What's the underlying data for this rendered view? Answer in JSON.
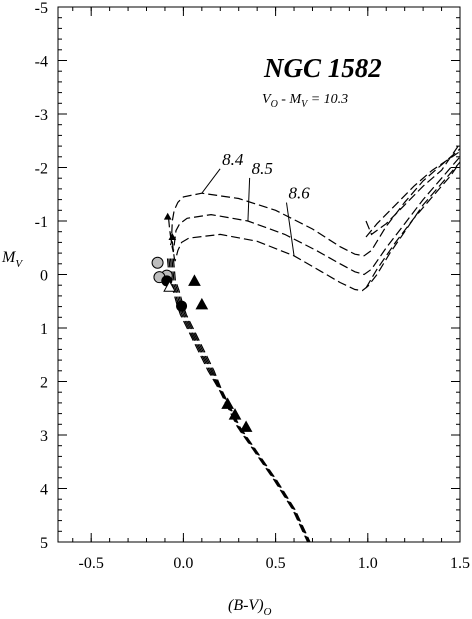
{
  "chart_data": {
    "type": "scatter",
    "title": "NGC 1582",
    "subtitle": {
      "main": "V",
      "sub1": "O",
      "mid": " - M",
      "sub2": "V",
      "tail": " = 10.3"
    },
    "xlabel": {
      "main": "(B-V)",
      "sub": "O"
    },
    "ylabel": {
      "main": "M",
      "sub": "V"
    },
    "xlim": [
      -0.68,
      1.5
    ],
    "ylim": [
      5,
      -5
    ],
    "y_inverted": true,
    "grid": false,
    "x_ticks": [
      {
        "value": -0.5,
        "label": "-0.5"
      },
      {
        "value": 0.0,
        "label": "0.0"
      },
      {
        "value": 0.5,
        "label": "0.5"
      },
      {
        "value": 1.0,
        "label": "1.0"
      },
      {
        "value": 1.5,
        "label": "1.5"
      }
    ],
    "y_ticks": [
      {
        "value": -5,
        "label": "-5"
      },
      {
        "value": -4,
        "label": "-4"
      },
      {
        "value": -3,
        "label": "-3"
      },
      {
        "value": -2,
        "label": "-2"
      },
      {
        "value": -1,
        "label": "-1"
      },
      {
        "value": 0,
        "label": "0"
      },
      {
        "value": 1,
        "label": "1"
      },
      {
        "value": 2,
        "label": "2"
      },
      {
        "value": 3,
        "label": "3"
      },
      {
        "value": 4,
        "label": "4"
      },
      {
        "value": 5,
        "label": "5"
      }
    ],
    "isochrones": [
      {
        "label": "8.4",
        "points": [
          [
            -0.08,
            -1.05
          ],
          [
            -0.075,
            -0.85
          ],
          [
            -0.07,
            -0.72
          ],
          [
            -0.065,
            -0.62
          ],
          [
            -0.07,
            -0.55
          ],
          [
            -0.065,
            -0.6
          ],
          [
            -0.06,
            -1.0
          ],
          [
            -0.05,
            -1.2
          ],
          [
            -0.03,
            -1.35
          ],
          [
            0.0,
            -1.45
          ],
          [
            0.1,
            -1.52
          ],
          [
            0.3,
            -1.42
          ],
          [
            0.5,
            -1.2
          ],
          [
            0.7,
            -0.85
          ],
          [
            0.85,
            -0.52
          ],
          [
            0.93,
            -0.38
          ],
          [
            0.98,
            -0.35
          ],
          [
            1.02,
            -0.45
          ],
          [
            1.1,
            -0.9
          ],
          [
            1.2,
            -1.35
          ],
          [
            1.3,
            -1.75
          ],
          [
            1.4,
            -2.05
          ],
          [
            1.5,
            -2.35
          ]
        ],
        "label_pos": [
          0.21,
          -2.05
        ]
      },
      {
        "label": "8.5",
        "points": [
          [
            -0.07,
            -0.78
          ],
          [
            -0.065,
            -0.62
          ],
          [
            -0.06,
            -0.5
          ],
          [
            -0.055,
            -0.42
          ],
          [
            -0.05,
            -0.55
          ],
          [
            -0.04,
            -0.82
          ],
          [
            -0.02,
            -0.95
          ],
          [
            0.02,
            -1.05
          ],
          [
            0.15,
            -1.12
          ],
          [
            0.35,
            -1.0
          ],
          [
            0.55,
            -0.75
          ],
          [
            0.72,
            -0.45
          ],
          [
            0.85,
            -0.2
          ],
          [
            0.93,
            -0.05
          ],
          [
            0.98,
            0.0
          ],
          [
            1.02,
            -0.1
          ],
          [
            1.1,
            -0.5
          ],
          [
            1.2,
            -0.95
          ],
          [
            1.3,
            -1.4
          ],
          [
            1.4,
            -1.8
          ],
          [
            1.5,
            -2.2
          ]
        ],
        "label_pos": [
          0.37,
          -1.88
        ]
      },
      {
        "label": "8.6",
        "points": [
          [
            -0.06,
            -0.62
          ],
          [
            -0.055,
            -0.45
          ],
          [
            -0.05,
            -0.32
          ],
          [
            -0.045,
            -0.25
          ],
          [
            -0.03,
            -0.45
          ],
          [
            -0.01,
            -0.6
          ],
          [
            0.03,
            -0.68
          ],
          [
            0.2,
            -0.75
          ],
          [
            0.4,
            -0.62
          ],
          [
            0.6,
            -0.35
          ],
          [
            0.75,
            -0.05
          ],
          [
            0.85,
            0.15
          ],
          [
            0.93,
            0.28
          ],
          [
            0.97,
            0.3
          ],
          [
            1.0,
            0.22
          ],
          [
            1.05,
            0.0
          ],
          [
            1.12,
            -0.4
          ],
          [
            1.2,
            -0.8
          ],
          [
            1.3,
            -1.3
          ],
          [
            1.4,
            -1.7
          ],
          [
            1.5,
            -2.1
          ]
        ],
        "label_pos": [
          0.57,
          -1.42
        ]
      }
    ],
    "main_sequence": [
      [
        -0.07,
        -0.3
      ],
      [
        -0.06,
        0.1
      ],
      [
        -0.04,
        0.3
      ],
      [
        -0.02,
        0.55
      ],
      [
        0.0,
        0.75
      ],
      [
        0.05,
        1.1
      ],
      [
        0.1,
        1.45
      ],
      [
        0.15,
        1.8
      ],
      [
        0.2,
        2.15
      ],
      [
        0.25,
        2.5
      ],
      [
        0.3,
        2.85
      ],
      [
        0.4,
        3.35
      ],
      [
        0.5,
        3.85
      ],
      [
        0.6,
        4.4
      ],
      [
        0.68,
        5.0
      ]
    ],
    "ms_offsets": [
      -0.016,
      -0.008,
      0.0,
      0.008,
      0.016
    ],
    "rgb_extra_lines": [
      {
        "points": [
          [
            0.99,
            -0.7
          ],
          [
            1.05,
            -0.95
          ],
          [
            1.15,
            -1.3
          ],
          [
            1.25,
            -1.65
          ],
          [
            1.35,
            -1.95
          ],
          [
            1.5,
            -2.3
          ]
        ]
      },
      {
        "points": [
          [
            0.99,
            -1.0
          ],
          [
            1.02,
            -0.75
          ],
          [
            1.1,
            -0.95
          ],
          [
            1.2,
            -1.3
          ],
          [
            1.3,
            -1.65
          ],
          [
            1.4,
            -1.95
          ],
          [
            1.5,
            -2.45
          ]
        ]
      },
      {
        "points": [
          [
            0.99,
            0.25
          ],
          [
            1.05,
            -0.1
          ],
          [
            1.15,
            -0.6
          ],
          [
            1.25,
            -1.05
          ],
          [
            1.35,
            -1.45
          ],
          [
            1.45,
            -1.85
          ],
          [
            1.5,
            -2.1
          ]
        ]
      }
    ],
    "stars": {
      "gray_circles": [
        [
          -0.14,
          -0.22
        ],
        [
          -0.09,
          0.02
        ],
        [
          -0.13,
          0.05
        ]
      ],
      "black_circles": [
        [
          -0.09,
          0.12
        ],
        [
          -0.01,
          0.59
        ]
      ],
      "open_triangles": [
        [
          -0.075,
          0.23
        ]
      ],
      "black_triangles": [
        [
          0.06,
          0.12
        ],
        [
          0.1,
          0.56
        ],
        [
          0.24,
          2.42
        ],
        [
          0.28,
          2.62
        ],
        [
          0.34,
          2.85
        ]
      ],
      "small_black_triangles": [
        [
          -0.085,
          -1.08
        ],
        [
          -0.06,
          -0.7
        ]
      ]
    }
  }
}
